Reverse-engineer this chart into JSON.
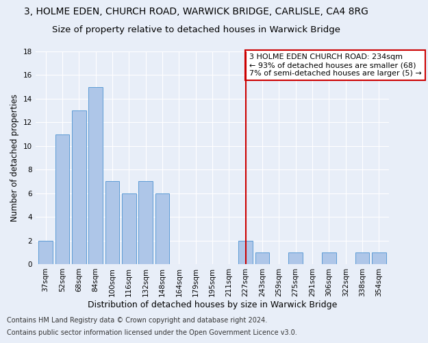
{
  "title1": "3, HOLME EDEN, CHURCH ROAD, WARWICK BRIDGE, CARLISLE, CA4 8RG",
  "title2": "Size of property relative to detached houses in Warwick Bridge",
  "xlabel": "Distribution of detached houses by size in Warwick Bridge",
  "ylabel": "Number of detached properties",
  "categories": [
    "37sqm",
    "52sqm",
    "68sqm",
    "84sqm",
    "100sqm",
    "116sqm",
    "132sqm",
    "148sqm",
    "164sqm",
    "179sqm",
    "195sqm",
    "211sqm",
    "227sqm",
    "243sqm",
    "259sqm",
    "275sqm",
    "291sqm",
    "306sqm",
    "322sqm",
    "338sqm",
    "354sqm"
  ],
  "values": [
    2,
    11,
    13,
    15,
    7,
    6,
    7,
    6,
    0,
    0,
    0,
    0,
    2,
    1,
    0,
    1,
    0,
    1,
    0,
    1,
    1
  ],
  "bar_color": "#aec6e8",
  "bar_edgecolor": "#5b9bd5",
  "vline_index": 12,
  "vline_color": "#cc0000",
  "annotation_text": "3 HOLME EDEN CHURCH ROAD: 234sqm\n← 93% of detached houses are smaller (68)\n7% of semi-detached houses are larger (5) →",
  "annotation_box_color": "#ffffff",
  "annotation_box_edgecolor": "#cc0000",
  "ylim": [
    0,
    18
  ],
  "yticks": [
    0,
    2,
    4,
    6,
    8,
    10,
    12,
    14,
    16,
    18
  ],
  "footer1": "Contains HM Land Registry data © Crown copyright and database right 2024.",
  "footer2": "Contains public sector information licensed under the Open Government Licence v3.0.",
  "background_color": "#e8eef8",
  "plot_background": "#e8eef8",
  "grid_color": "#ffffff",
  "title1_fontsize": 10,
  "title2_fontsize": 9.5,
  "xlabel_fontsize": 9,
  "ylabel_fontsize": 8.5,
  "tick_fontsize": 7.5,
  "annotation_fontsize": 8,
  "footer_fontsize": 7
}
